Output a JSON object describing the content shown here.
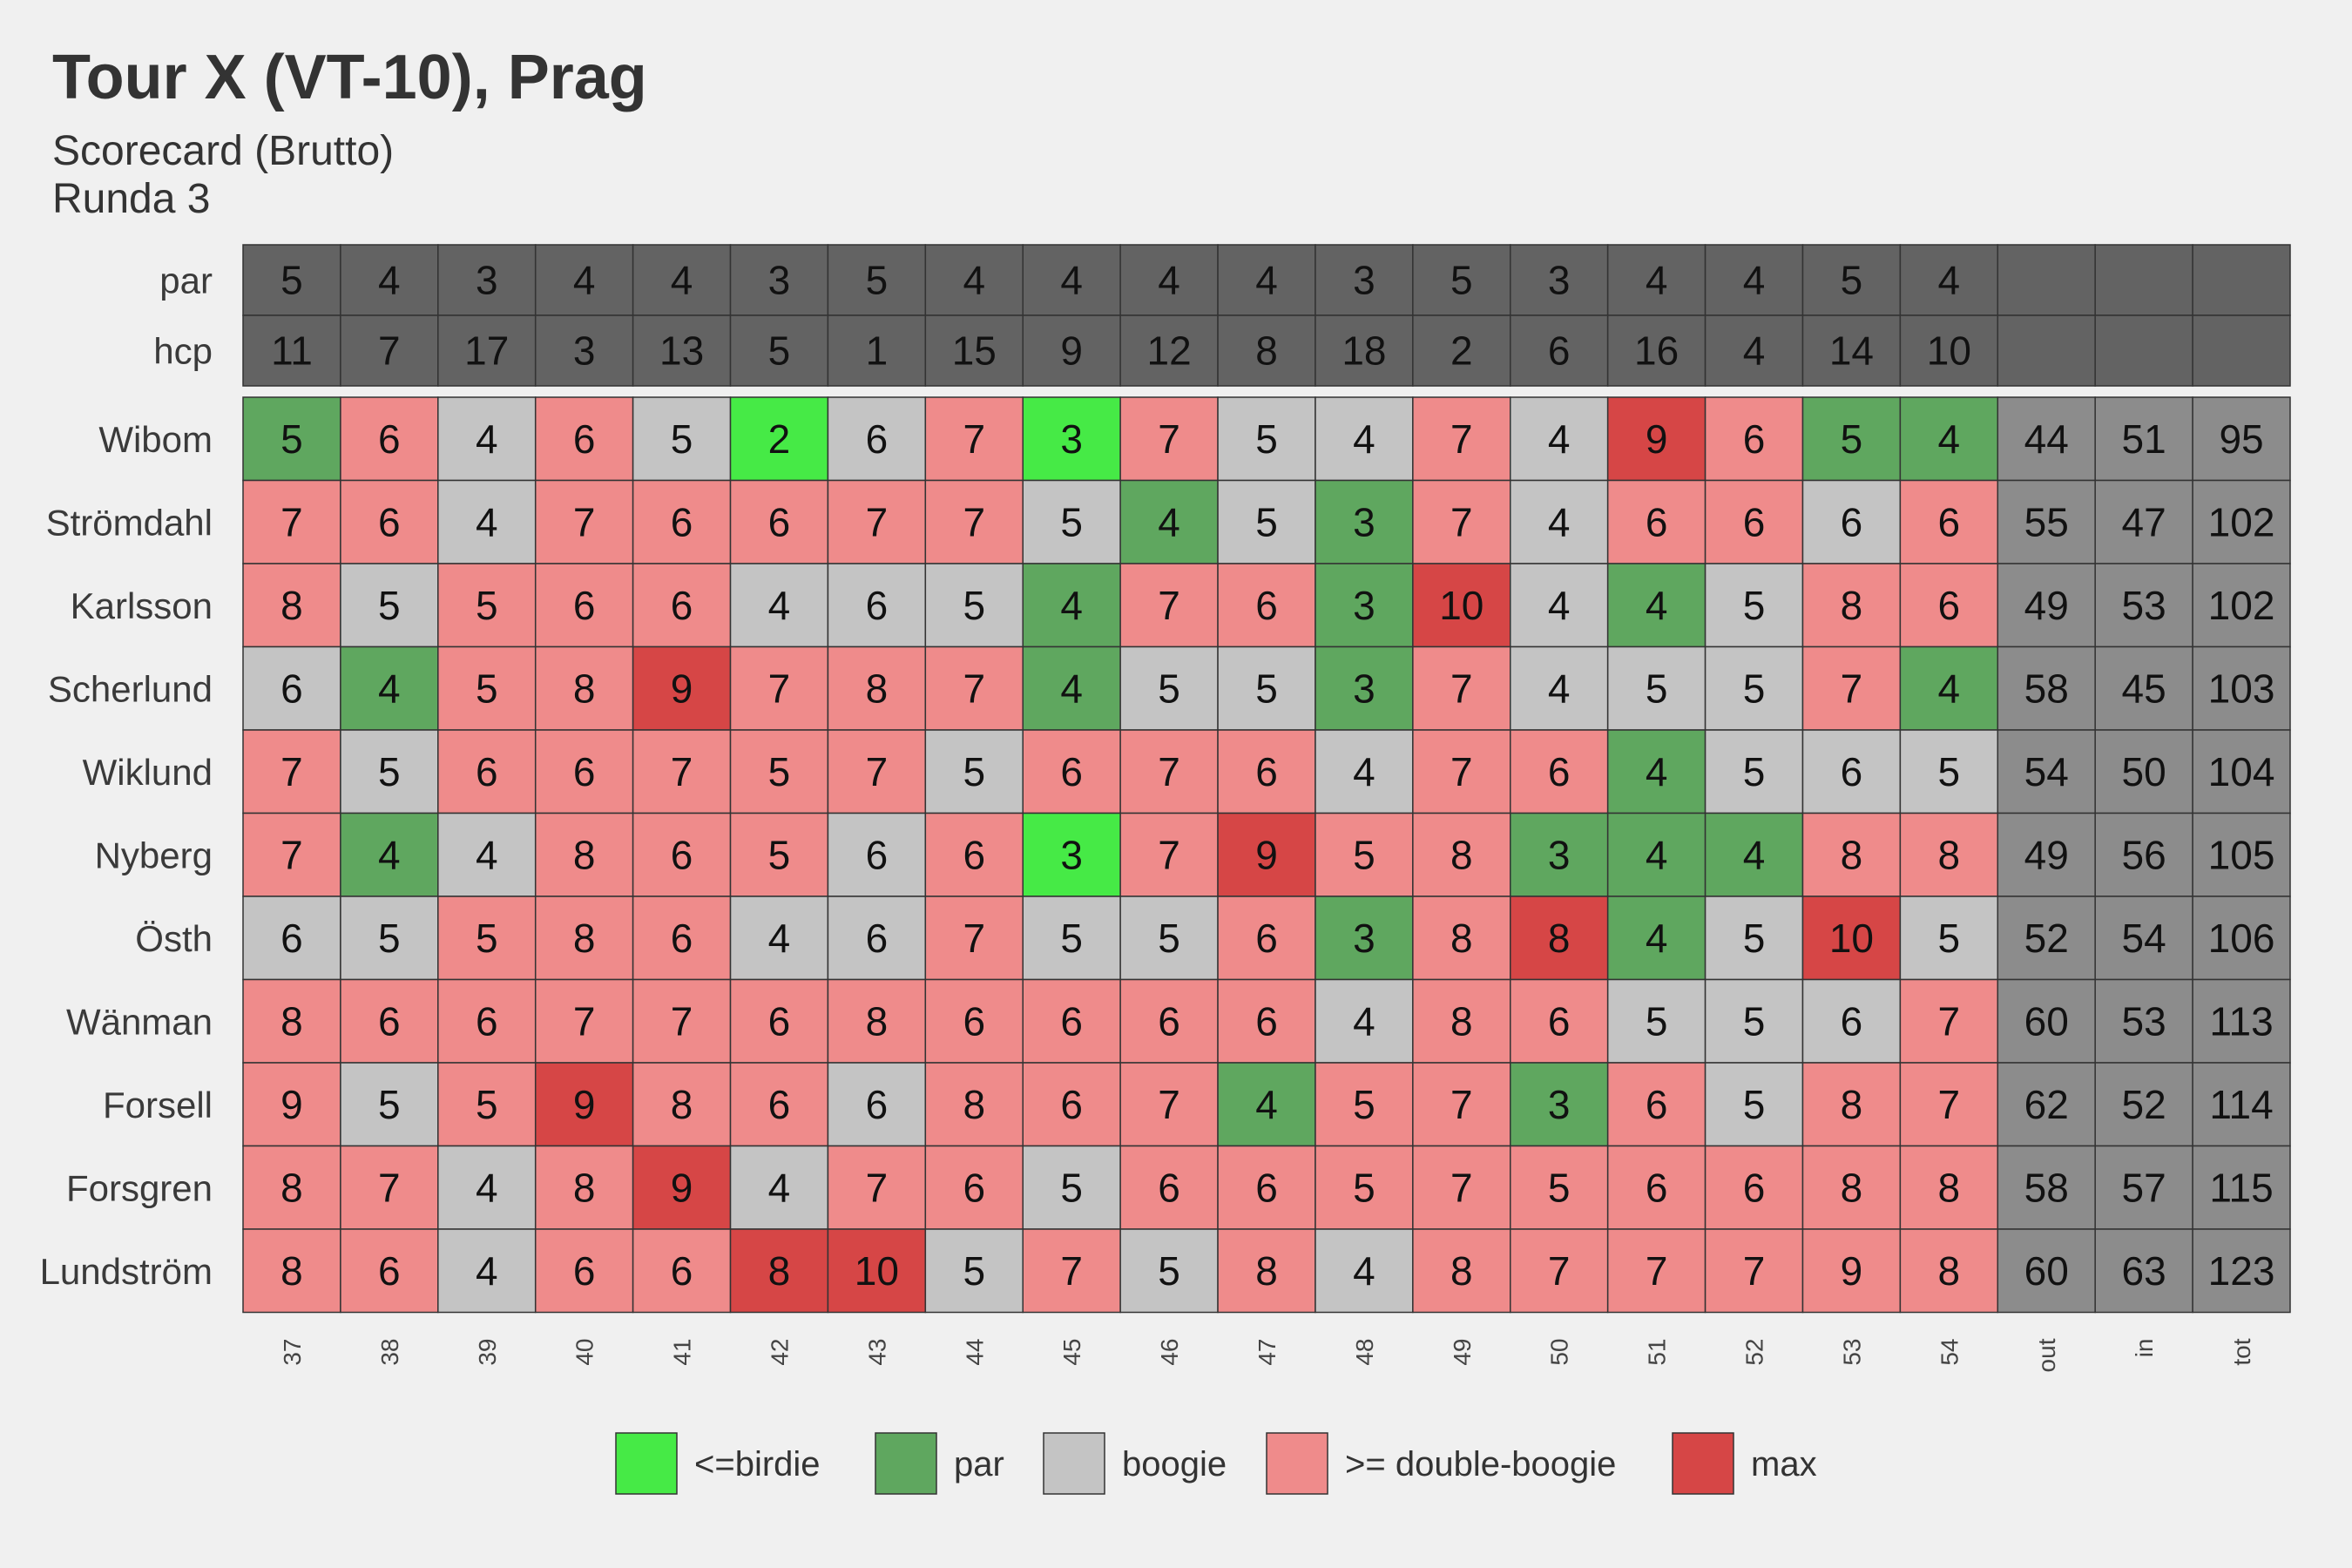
{
  "chart_data": {
    "type": "heatmap",
    "title": "Tour X (VT-10), Prag",
    "subtitle": "Scorecard (Brutto)",
    "caption": "Runda 3",
    "columns": [
      "37",
      "38",
      "39",
      "40",
      "41",
      "42",
      "43",
      "44",
      "45",
      "46",
      "47",
      "48",
      "49",
      "50",
      "51",
      "52",
      "53",
      "54",
      "out",
      "in",
      "tot"
    ],
    "header_rows": [
      {
        "label": "par",
        "values": [
          5,
          4,
          3,
          4,
          4,
          3,
          5,
          4,
          4,
          4,
          4,
          3,
          5,
          3,
          4,
          4,
          5,
          4
        ]
      },
      {
        "label": "hcp",
        "values": [
          11,
          7,
          17,
          3,
          13,
          5,
          1,
          15,
          9,
          12,
          8,
          18,
          2,
          6,
          16,
          4,
          14,
          10
        ]
      }
    ],
    "players": [
      {
        "name": "Wibom",
        "scores": [
          5,
          6,
          4,
          6,
          5,
          2,
          6,
          7,
          3,
          7,
          5,
          4,
          7,
          4,
          9,
          6,
          5,
          4
        ],
        "out": 44,
        "in": 51,
        "tot": 95
      },
      {
        "name": "Strömdahl",
        "scores": [
          7,
          6,
          4,
          7,
          6,
          6,
          7,
          7,
          5,
          4,
          5,
          3,
          7,
          4,
          6,
          6,
          6,
          6
        ],
        "out": 55,
        "in": 47,
        "tot": 102
      },
      {
        "name": "Karlsson",
        "scores": [
          8,
          5,
          5,
          6,
          6,
          4,
          6,
          5,
          4,
          7,
          6,
          3,
          10,
          4,
          4,
          5,
          8,
          6
        ],
        "out": 49,
        "in": 53,
        "tot": 102
      },
      {
        "name": "Scherlund",
        "scores": [
          6,
          4,
          5,
          8,
          9,
          7,
          8,
          7,
          4,
          5,
          5,
          3,
          7,
          4,
          5,
          5,
          7,
          4
        ],
        "out": 58,
        "in": 45,
        "tot": 103
      },
      {
        "name": "Wiklund",
        "scores": [
          7,
          5,
          6,
          6,
          7,
          5,
          7,
          5,
          6,
          7,
          6,
          4,
          7,
          6,
          4,
          5,
          6,
          5
        ],
        "out": 54,
        "in": 50,
        "tot": 104
      },
      {
        "name": "Nyberg",
        "scores": [
          7,
          4,
          4,
          8,
          6,
          5,
          6,
          6,
          3,
          7,
          9,
          5,
          8,
          3,
          4,
          4,
          8,
          8
        ],
        "out": 49,
        "in": 56,
        "tot": 105
      },
      {
        "name": "Östh",
        "scores": [
          6,
          5,
          5,
          8,
          6,
          4,
          6,
          7,
          5,
          5,
          6,
          3,
          8,
          8,
          4,
          5,
          10,
          5
        ],
        "out": 52,
        "in": 54,
        "tot": 106
      },
      {
        "name": "Wänman",
        "scores": [
          8,
          6,
          6,
          7,
          7,
          6,
          8,
          6,
          6,
          6,
          6,
          4,
          8,
          6,
          5,
          5,
          6,
          7
        ],
        "out": 60,
        "in": 53,
        "tot": 113
      },
      {
        "name": "Forsell",
        "scores": [
          9,
          5,
          5,
          9,
          8,
          6,
          6,
          8,
          6,
          7,
          4,
          5,
          7,
          3,
          6,
          5,
          8,
          7
        ],
        "out": 62,
        "in": 52,
        "tot": 114
      },
      {
        "name": "Forsgren",
        "scores": [
          8,
          7,
          4,
          8,
          9,
          4,
          7,
          6,
          5,
          6,
          6,
          5,
          7,
          5,
          6,
          6,
          8,
          8
        ],
        "out": 58,
        "in": 57,
        "tot": 115
      },
      {
        "name": "Lundström",
        "scores": [
          8,
          6,
          4,
          6,
          6,
          8,
          10,
          5,
          7,
          5,
          8,
          4,
          8,
          7,
          7,
          7,
          9,
          8
        ],
        "out": 60,
        "in": 63,
        "tot": 123
      }
    ],
    "categories": [
      {
        "name": "<=birdie",
        "color": "#46ea46"
      },
      {
        "name": "par",
        "color": "#5fa75f"
      },
      {
        "name": "boogie",
        "color": "#c4c4c4"
      },
      {
        "name": ">= double-boogie",
        "color": "#ef8b8b"
      },
      {
        "name": "max",
        "color": "#d64646"
      }
    ],
    "max_holes": {
      "Wibom": [
        15
      ],
      "Karlsson": [
        13
      ],
      "Scherlund": [
        5
      ],
      "Nyberg": [
        11
      ],
      "Östh": [
        14,
        17
      ],
      "Forsell": [
        4
      ],
      "Forsgren": [
        5
      ],
      "Lundström": [
        6,
        7
      ]
    },
    "legend_position": "bottom",
    "header_color": "#636363",
    "totals_color": "#8c8c8c"
  }
}
